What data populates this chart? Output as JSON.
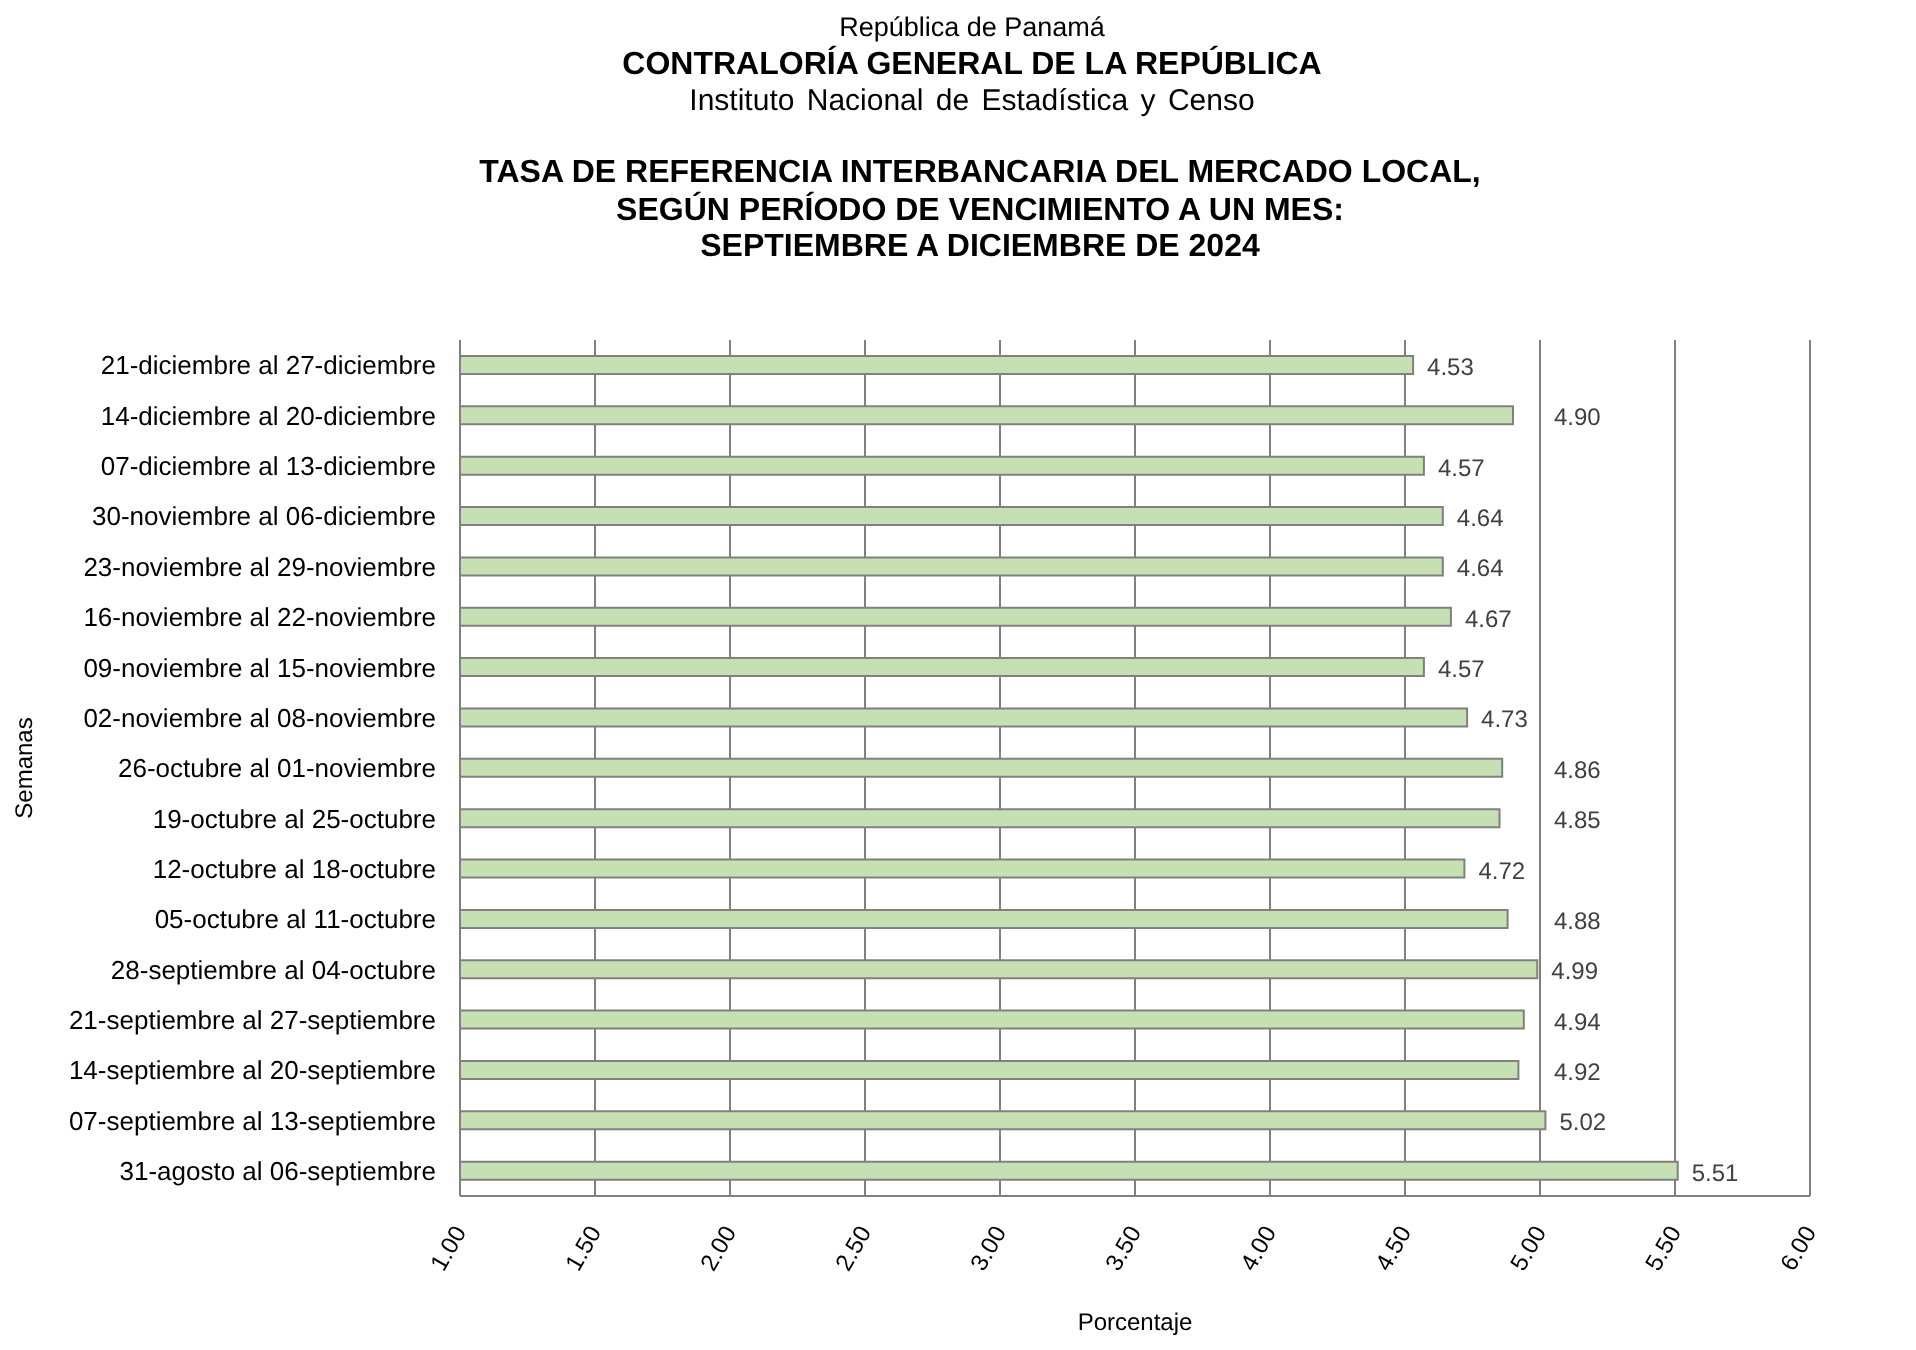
{
  "chart_data": {
    "type": "bar",
    "orientation": "horizontal",
    "annotations": [
      "República de Panamá",
      "CONTRALORÍA GENERAL DE LA REPÚBLICA",
      "Instituto Nacional de Estadística y Censo"
    ],
    "title": "TASA DE REFERENCIA INTERBANCARIA DEL MERCADO LOCAL,\nSEGÚN PERÍODO DE VENCIMIENTO A UN MES:\nSEPTIEMBRE A DICIEMBRE DE 2024",
    "xlabel": "Porcentaje",
    "ylabel": "Semanas",
    "categories": [
      "21-diciembre al 27-diciembre",
      "14-diciembre al 20-diciembre",
      "07-diciembre al 13-diciembre",
      "30-noviembre al 06-diciembre",
      "23-noviembre al 29-noviembre",
      "16-noviembre al 22-noviembre",
      "09-noviembre al 15-noviembre",
      "02-noviembre al 08-noviembre",
      "26-octubre al 01-noviembre",
      "19-octubre al 25-octubre",
      "12-octubre al 18-octubre",
      "05-octubre al 11-octubre",
      "28-septiembre al 04-octubre",
      "21-septiembre al 27-septiembre",
      "14-septiembre al 20-septiembre",
      "07-septiembre al 13-septiembre",
      "31-agosto al 06-septiembre"
    ],
    "values": [
      4.53,
      4.9,
      4.57,
      4.64,
      4.64,
      4.67,
      4.57,
      4.73,
      4.86,
      4.85,
      4.72,
      4.88,
      4.99,
      4.94,
      4.92,
      5.02,
      5.51
    ],
    "value_labels": [
      "4.53",
      "4.90",
      "4.57",
      "4.64",
      "4.64",
      "4.67",
      "4.57",
      "4.73",
      "4.86",
      "4.85",
      "4.72",
      "4.88",
      "4.99",
      "4.94",
      "4.92",
      "5.02",
      "5.51"
    ],
    "color": "#c6e0b4",
    "xlim": [
      1,
      6
    ],
    "xticks": [
      {
        "value": 1,
        "label": "1.00"
      },
      {
        "value": 1.5,
        "label": "1.50"
      },
      {
        "value": 2,
        "label": "2.00"
      },
      {
        "value": 2.5,
        "label": "2.50"
      },
      {
        "value": 3,
        "label": "3.00"
      },
      {
        "value": 3.5,
        "label": "3.50"
      },
      {
        "value": 4,
        "label": "4.00"
      },
      {
        "value": 4.5,
        "label": "4.50"
      },
      {
        "value": 5,
        "label": "5.00"
      },
      {
        "value": 5.5,
        "label": "5.50"
      },
      {
        "value": 6,
        "label": "6.00"
      }
    ],
    "grid": "x"
  }
}
